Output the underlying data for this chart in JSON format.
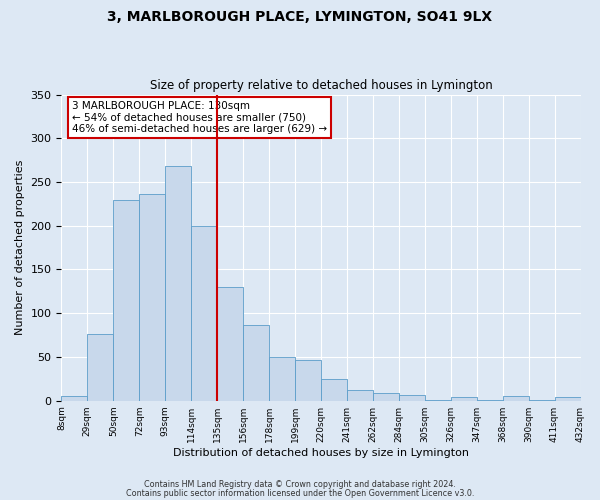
{
  "title": "3, MARLBOROUGH PLACE, LYMINGTON, SO41 9LX",
  "subtitle": "Size of property relative to detached houses in Lymington",
  "xlabel": "Distribution of detached houses by size in Lymington",
  "ylabel": "Number of detached properties",
  "bar_labels": [
    "8sqm",
    "29sqm",
    "50sqm",
    "72sqm",
    "93sqm",
    "114sqm",
    "135sqm",
    "156sqm",
    "178sqm",
    "199sqm",
    "220sqm",
    "241sqm",
    "262sqm",
    "284sqm",
    "305sqm",
    "326sqm",
    "347sqm",
    "368sqm",
    "390sqm",
    "411sqm",
    "432sqm"
  ],
  "bar_values": [
    5,
    76,
    229,
    236,
    268,
    200,
    130,
    87,
    50,
    46,
    25,
    12,
    9,
    6,
    1,
    4,
    1,
    5,
    1,
    4
  ],
  "bar_color": "#c8d8eb",
  "bar_edge_color": "#5b9dc9",
  "vline_color": "#cc0000",
  "annotation_text": "3 MARLBOROUGH PLACE: 130sqm\n← 54% of detached houses are smaller (750)\n46% of semi-detached houses are larger (629) →",
  "annotation_box_facecolor": "#ffffff",
  "annotation_box_edgecolor": "#cc0000",
  "ylim": [
    0,
    350
  ],
  "yticks": [
    0,
    50,
    100,
    150,
    200,
    250,
    300,
    350
  ],
  "bg_color": "#dde8f4",
  "plot_bg_color": "#dde8f4",
  "footer1": "Contains HM Land Registry data © Crown copyright and database right 2024.",
  "footer2": "Contains public sector information licensed under the Open Government Licence v3.0."
}
